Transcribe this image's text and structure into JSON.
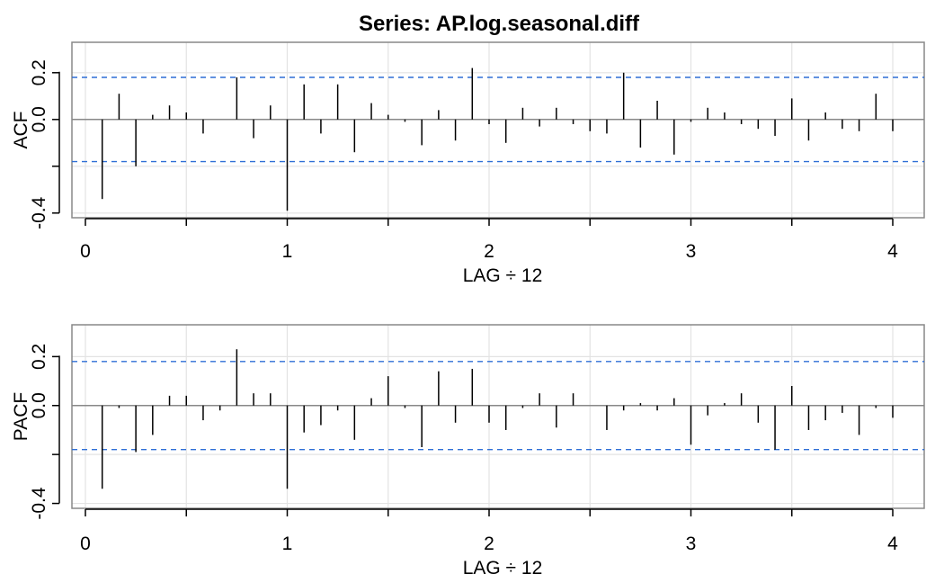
{
  "title": "Series:  AP.log.seasonal.diff",
  "colors": {
    "bound": "#2f6fd6",
    "grid": "#e3e3e3",
    "frame": "#888888",
    "bar": "#000000",
    "zero": "#888888"
  },
  "chart_data": [
    {
      "type": "bar",
      "ylabel": "ACF",
      "xlabel": "LAG ÷ 12",
      "xlim": [
        0,
        4
      ],
      "xticks": [
        "0",
        "1",
        "2",
        "3",
        "4"
      ],
      "ylim": [
        -0.42,
        0.33
      ],
      "yticks": [
        "-0.4",
        "0.0",
        "0.2"
      ],
      "confidence_bound": 0.18,
      "grid": true,
      "x": [
        0.0833,
        0.1667,
        0.25,
        0.3333,
        0.4167,
        0.5,
        0.5833,
        0.6667,
        0.75,
        0.8333,
        0.9167,
        1.0,
        1.0833,
        1.1667,
        1.25,
        1.3333,
        1.4167,
        1.5,
        1.5833,
        1.6667,
        1.75,
        1.8333,
        1.9167,
        2.0,
        2.0833,
        2.1667,
        2.25,
        2.3333,
        2.4167,
        2.5,
        2.5833,
        2.6667,
        2.75,
        2.8333,
        2.9167,
        3.0,
        3.0833,
        3.1667,
        3.25,
        3.3333,
        3.4167,
        3.5,
        3.5833,
        3.6667,
        3.75,
        3.8333,
        3.9167,
        4.0
      ],
      "values": [
        -0.34,
        0.11,
        -0.2,
        0.02,
        0.06,
        0.03,
        -0.06,
        0.0,
        0.18,
        -0.08,
        0.06,
        -0.39,
        0.15,
        -0.06,
        0.15,
        -0.14,
        0.07,
        0.02,
        -0.01,
        -0.11,
        0.04,
        -0.09,
        0.22,
        -0.02,
        -0.1,
        0.05,
        -0.03,
        0.05,
        -0.02,
        -0.05,
        -0.06,
        0.2,
        -0.12,
        0.08,
        -0.15,
        -0.01,
        0.05,
        0.03,
        -0.02,
        -0.04,
        -0.07,
        0.09,
        -0.09,
        0.03,
        -0.04,
        -0.05,
        0.11,
        -0.05
      ]
    },
    {
      "type": "bar",
      "ylabel": "PACF",
      "xlabel": "LAG ÷ 12",
      "xlim": [
        0,
        4
      ],
      "xticks": [
        "0",
        "1",
        "2",
        "3",
        "4"
      ],
      "ylim": [
        -0.42,
        0.33
      ],
      "yticks": [
        "-0.4",
        "0.0",
        "0.2"
      ],
      "confidence_bound": 0.18,
      "grid": true,
      "x": [
        0.0833,
        0.1667,
        0.25,
        0.3333,
        0.4167,
        0.5,
        0.5833,
        0.6667,
        0.75,
        0.8333,
        0.9167,
        1.0,
        1.0833,
        1.1667,
        1.25,
        1.3333,
        1.4167,
        1.5,
        1.5833,
        1.6667,
        1.75,
        1.8333,
        1.9167,
        2.0,
        2.0833,
        2.1667,
        2.25,
        2.3333,
        2.4167,
        2.5,
        2.5833,
        2.6667,
        2.75,
        2.8333,
        2.9167,
        3.0,
        3.0833,
        3.1667,
        3.25,
        3.3333,
        3.4167,
        3.5,
        3.5833,
        3.6667,
        3.75,
        3.8333,
        3.9167,
        4.0
      ],
      "values": [
        -0.34,
        -0.01,
        -0.19,
        -0.12,
        0.04,
        0.04,
        -0.06,
        -0.02,
        0.23,
        0.05,
        0.05,
        -0.34,
        -0.11,
        -0.08,
        -0.02,
        -0.14,
        0.03,
        0.12,
        -0.01,
        -0.17,
        0.14,
        -0.07,
        0.15,
        -0.07,
        -0.1,
        -0.01,
        0.05,
        -0.09,
        0.05,
        0.0,
        -0.1,
        -0.02,
        0.01,
        -0.02,
        0.03,
        -0.16,
        -0.04,
        0.01,
        0.05,
        -0.07,
        -0.18,
        0.08,
        -0.1,
        -0.06,
        -0.03,
        -0.12,
        -0.01,
        -0.05
      ]
    }
  ]
}
